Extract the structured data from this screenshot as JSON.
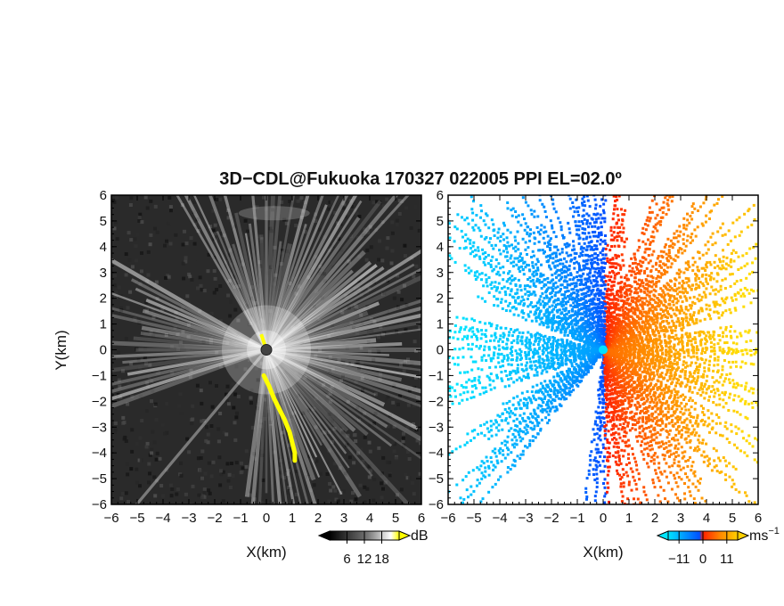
{
  "chart_data": {
    "title": "3D−CDL@Fukuoka 170327 022005 PPI EL=02.0º",
    "panels": [
      {
        "type": "heatmap",
        "name": "reflectivity",
        "xlabel": "X(km)",
        "ylabel": "Y(km)",
        "xlim": [
          -6,
          6
        ],
        "ylim": [
          -6,
          6
        ],
        "xticks": [
          "−6",
          "−5",
          "−4",
          "−3",
          "−2",
          "−1",
          "0",
          "1",
          "2",
          "3",
          "4",
          "5",
          "6"
        ],
        "yticks": [
          "6",
          "5",
          "4",
          "3",
          "2",
          "1",
          "0",
          "−1",
          "−2",
          "−3",
          "−4",
          "−5",
          "−6"
        ],
        "colorbar": {
          "unit": "dB",
          "ticks": [
            "6",
            "12",
            "18"
          ],
          "range": [
            0,
            24
          ],
          "colors": [
            "#000000",
            "#ffffff",
            "#ffff00"
          ]
        },
        "highlight_color": "#ffff00"
      },
      {
        "type": "heatmap",
        "name": "doppler-velocity",
        "xlabel": "X(km)",
        "ylabel": "",
        "xlim": [
          -6,
          6
        ],
        "ylim": [
          -6,
          6
        ],
        "xticks": [
          "−6",
          "−5",
          "−4",
          "−3",
          "−2",
          "−1",
          "0",
          "1",
          "2",
          "3",
          "4",
          "5",
          "6"
        ],
        "yticks": [
          "6",
          "5",
          "4",
          "3",
          "2",
          "1",
          "0",
          "−1",
          "−2",
          "−3",
          "−4",
          "−5",
          "−6"
        ],
        "colorbar": {
          "unit": "ms",
          "unit_exponent": "−1",
          "ticks": [
            "−11",
            "0",
            "11"
          ],
          "range": [
            -16,
            16
          ],
          "colors": [
            "#00e5ff",
            "#0050ff",
            "#ff2000",
            "#ffd000"
          ]
        },
        "radar_marker_color": "#00e0ff"
      }
    ]
  }
}
